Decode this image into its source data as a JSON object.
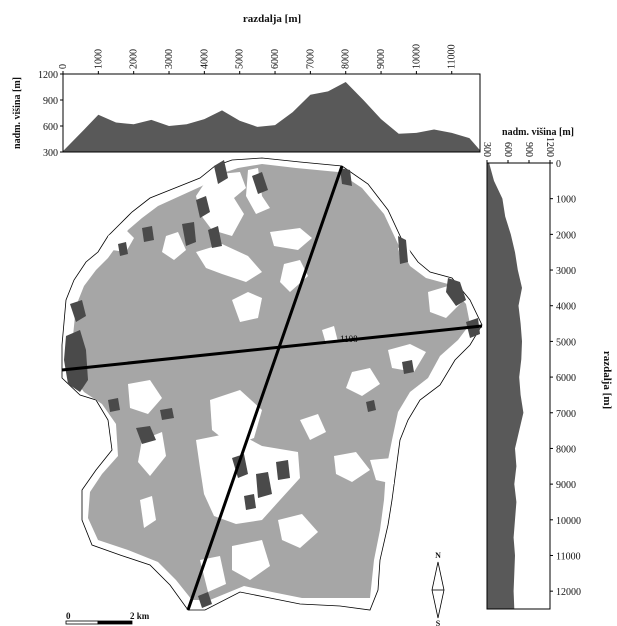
{
  "colors": {
    "forest": "#a6a6a6",
    "profile_fill": "#595959",
    "dark_patch": "#4a4a4a",
    "line": "#000000",
    "background": "#ffffff"
  },
  "top_profile": {
    "title": "razdalja [m]",
    "ylabel": "nadm. višina [m]",
    "xticks": [
      "0",
      "1000",
      "2000",
      "3000",
      "4000",
      "5000",
      "6000",
      "7000",
      "8000",
      "9000",
      "10000",
      "11000"
    ],
    "yticks": [
      "300",
      "600",
      "900",
      "1200"
    ],
    "xlim": [
      0,
      11800
    ],
    "ylim": [
      300,
      1200
    ],
    "distance": [
      0,
      600,
      1000,
      1500,
      2000,
      2500,
      3000,
      3500,
      4000,
      4500,
      5000,
      5500,
      6000,
      6500,
      7000,
      7500,
      8000,
      8500,
      9000,
      9500,
      10000,
      10500,
      11000,
      11500,
      11800
    ],
    "elevation": [
      310,
      560,
      730,
      640,
      620,
      670,
      600,
      620,
      680,
      780,
      660,
      590,
      610,
      760,
      960,
      1000,
      1108,
      900,
      680,
      510,
      520,
      560,
      520,
      460,
      320
    ]
  },
  "right_profile": {
    "title": "razdalja [m]",
    "ylabel": "nadm. višina [m]",
    "xticks": [
      "300",
      "600",
      "900",
      "1200"
    ],
    "yticks": [
      "0",
      "1000",
      "2000",
      "3000",
      "4000",
      "5000",
      "6000",
      "7000",
      "8000",
      "9000",
      "10000",
      "11000",
      "12000"
    ],
    "xlim": [
      300,
      1200
    ],
    "ylim": [
      0,
      12500
    ],
    "distance": [
      0,
      500,
      1000,
      1500,
      2000,
      2500,
      3000,
      3500,
      4000,
      4500,
      5000,
      5500,
      6000,
      6500,
      7000,
      7500,
      8000,
      8500,
      9000,
      9500,
      10000,
      10500,
      11000,
      11500,
      12000,
      12500
    ],
    "elevation": [
      330,
      400,
      520,
      560,
      640,
      700,
      740,
      800,
      750,
      780,
      800,
      790,
      760,
      780,
      820,
      760,
      700,
      720,
      690,
      720,
      700,
      680,
      700,
      690,
      680,
      690
    ]
  },
  "map": {
    "peak_label": "1108",
    "scale_zero": "0",
    "scale_end": "2 km",
    "north_label": "N",
    "south_label": "S"
  }
}
